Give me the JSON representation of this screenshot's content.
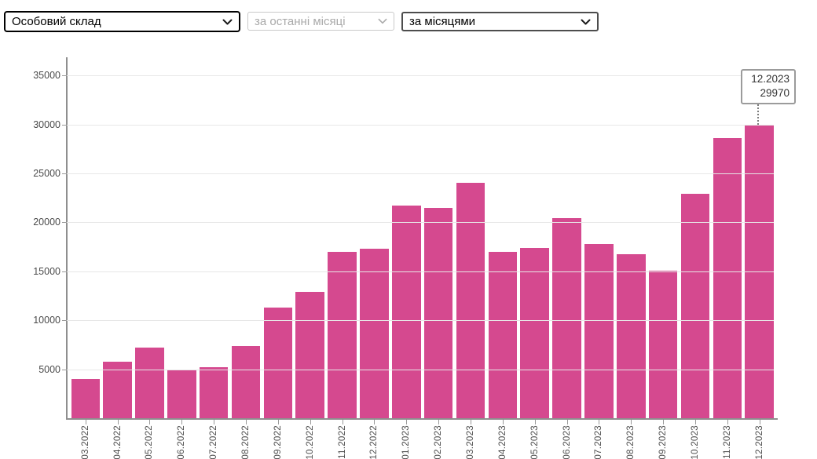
{
  "toolbar": {
    "select_dataset": {
      "value": "Особовий склад",
      "disabled": false
    },
    "select_period": {
      "value": "за останні місяці",
      "disabled": true
    },
    "select_grouping": {
      "value": "за місяцями",
      "disabled": false
    }
  },
  "chart_data": {
    "type": "bar",
    "title": "",
    "xlabel": "",
    "ylabel": "",
    "categories": [
      "03.2022",
      "04.2022",
      "05.2022",
      "06.2022",
      "07.2022",
      "08.2022",
      "09.2022",
      "10.2022",
      "11.2022",
      "12.2022",
      "01.2023",
      "02.2023",
      "03.2023",
      "04.2023",
      "05.2023",
      "06.2023",
      "07.2023",
      "08.2023",
      "09.2023",
      "10.2023",
      "11.2023",
      "12.2023"
    ],
    "values": [
      4000,
      5800,
      7200,
      5000,
      5200,
      7350,
      11300,
      12900,
      17000,
      17300,
      21750,
      21500,
      24050,
      17000,
      17400,
      20450,
      17800,
      16750,
      15100,
      22900,
      28600,
      29970
    ],
    "yticks": [
      5000,
      10000,
      15000,
      20000,
      25000,
      30000,
      35000
    ],
    "ylim": [
      0,
      36900
    ],
    "grid": true,
    "legend": false,
    "x_label_rotation": 90,
    "colors": {
      "bar": "#d5498f",
      "grid": "#e7e7e7",
      "axis": "#8f8f8f"
    },
    "tooltip": {
      "label": "12.2023",
      "value": "29970"
    }
  }
}
